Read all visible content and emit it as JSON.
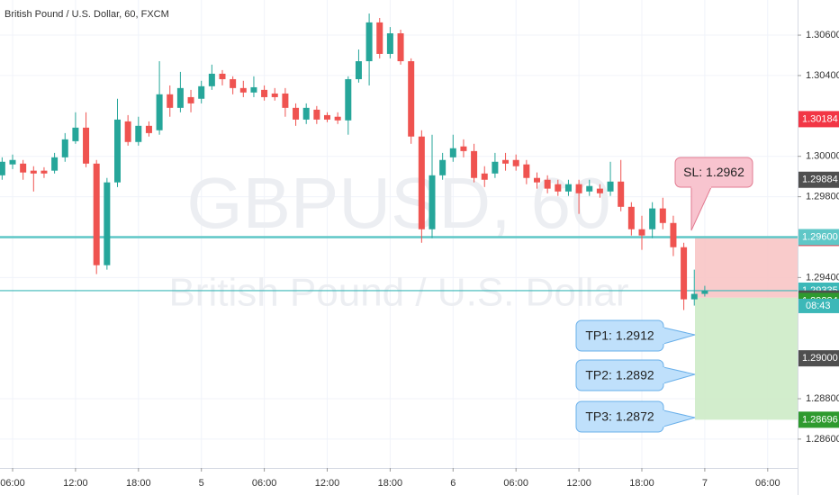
{
  "chart_data": {
    "type": "candlestick",
    "title": "British Pound / U.S. Dollar, 60, FXCM",
    "watermark": [
      "GBPUSD, 60",
      "British Pound / U.S. Dollar"
    ],
    "categories": [
      null,
      "06:00",
      null,
      null,
      null,
      null,
      null,
      "12:00",
      null,
      null,
      null,
      null,
      null,
      "18:00",
      null,
      null,
      null,
      null,
      null,
      "5",
      null,
      null,
      null,
      null,
      null,
      "06:00",
      null,
      null,
      null,
      null,
      null,
      "12:00",
      null,
      null,
      null,
      null,
      null,
      "18:00",
      null,
      null,
      null,
      null,
      null,
      "6",
      null,
      null,
      null,
      null,
      null,
      "06:00",
      null,
      null,
      null,
      null,
      null,
      "12:00",
      null,
      null,
      null,
      null,
      null,
      "18:00",
      null,
      null,
      null,
      null,
      null,
      "7",
      null,
      null,
      null,
      null,
      null,
      "06:00"
    ],
    "open": [
      1.29906,
      1.2996,
      1.29964,
      1.29929,
      1.29929,
      1.29929,
      1.29995,
      1.30075,
      1.30142,
      1.29964,
      1.29461,
      1.29871,
      1.30173,
      1.30071,
      1.30151,
      1.30129,
      1.30307,
      1.3024,
      1.30293,
      1.30285,
      1.30347,
      1.30409,
      1.30382,
      1.30338,
      1.30316,
      1.30329,
      1.30311,
      1.30311,
      1.3024,
      1.30182,
      1.30231,
      1.30204,
      1.30196,
      1.30178,
      1.30382,
      1.30471,
      1.30663,
      1.30507,
      1.30609,
      1.30471,
      1.30098,
      1.29639,
      1.29906,
      1.29995,
      1.30049,
      1.30026,
      1.29915,
      1.29915,
      1.29982,
      1.29982,
      1.2996,
      1.29893,
      1.29884,
      1.29862,
      1.29826,
      1.29862,
      1.29826,
      1.2984,
      1.29826,
      1.29875,
      1.2975,
      1.29639,
      1.29639,
      1.29742,
      1.2967,
      1.2955,
      1.29292,
      1.29319,
      null,
      null,
      null,
      null,
      null,
      null
    ],
    "high": [
      1.29995,
      1.30009,
      1.29982,
      1.29951,
      1.29946,
      1.30017,
      1.30115,
      1.30218,
      1.30218,
      1.29982,
      1.29893,
      1.30285,
      1.30204,
      1.30196,
      1.30173,
      1.30471,
      1.30351,
      1.30418,
      1.30329,
      1.30374,
      1.30454,
      1.30427,
      1.30396,
      1.30374,
      1.30396,
      1.30351,
      1.30338,
      1.30338,
      1.30262,
      1.30262,
      1.30249,
      1.30218,
      1.30218,
      1.30396,
      1.30529,
      1.30707,
      1.30685,
      1.3064,
      1.30627,
      1.30485,
      1.30129,
      1.30107,
      1.30017,
      1.30107,
      1.30084,
      1.30062,
      1.29951,
      1.30017,
      1.30017,
      1.30009,
      1.29982,
      1.2992,
      1.29906,
      1.29884,
      1.29884,
      1.29884,
      1.29884,
      1.29862,
      1.29973,
      1.29982,
      1.29773,
      1.29706,
      1.29773,
      1.29795,
      1.29706,
      1.29572,
      1.29439,
      1.29359,
      null,
      null,
      null,
      null,
      null,
      null
    ],
    "low": [
      1.29884,
      1.29937,
      1.29884,
      1.29826,
      1.29893,
      1.29915,
      1.29973,
      1.30062,
      1.29946,
      1.29417,
      1.29439,
      1.29848,
      1.30053,
      1.30053,
      1.30098,
      1.30107,
      1.30196,
      1.30218,
      1.30218,
      1.30262,
      1.30329,
      1.30351,
      1.30307,
      1.30293,
      1.30293,
      1.30276,
      1.30276,
      1.30196,
      1.30151,
      1.3016,
      1.3016,
      1.30169,
      1.3016,
      1.30107,
      1.30365,
      1.30351,
      1.30485,
      1.30485,
      1.30454,
      1.30062,
      1.29572,
      1.29595,
      1.29884,
      1.29973,
      1.29995,
      1.29871,
      1.29848,
      1.29893,
      1.29929,
      1.29929,
      1.29862,
      1.2984,
      1.29817,
      1.29804,
      1.29804,
      1.29715,
      1.29804,
      1.29795,
      1.29804,
      1.29728,
      1.29608,
      1.29537,
      1.29595,
      1.29639,
      1.29506,
      1.29239,
      1.29261,
      1.29306,
      null,
      null,
      null,
      null,
      null,
      null
    ],
    "close": [
      1.29973,
      1.29982,
      1.2992,
      1.29915,
      1.29915,
      1.29995,
      1.30084,
      1.30142,
      1.29964,
      1.29461,
      1.29871,
      1.30182,
      1.30071,
      1.30151,
      1.30115,
      1.30307,
      1.3024,
      1.30338,
      1.30262,
      1.30347,
      1.30409,
      1.30382,
      1.30338,
      1.30316,
      1.30342,
      1.30293,
      1.30293,
      1.3024,
      1.30182,
      1.3024,
      1.30182,
      1.30182,
      1.30178,
      1.30382,
      1.30471,
      1.30663,
      1.30507,
      1.30609,
      1.30471,
      1.30098,
      1.29639,
      1.29906,
      1.29982,
      1.3004,
      1.30026,
      1.29893,
      1.29884,
      1.29973,
      1.29964,
      1.29951,
      1.29893,
      1.29871,
      1.2984,
      1.29826,
      1.29862,
      1.29817,
      1.29853,
      1.29817,
      1.29875,
      1.2975,
      1.29639,
      1.29608,
      1.29742,
      1.2967,
      1.2955,
      1.29292,
      1.29319,
      1.29335,
      null,
      null,
      null,
      null,
      null,
      null
    ],
    "up_color": "#26a69a",
    "down_color": "#ef5350",
    "ylim": [
      1.28457,
      1.30774
    ],
    "yticks": [
      {
        "value": 1.306,
        "label": "1.30600"
      },
      {
        "value": 1.304,
        "label": "1.30400"
      },
      {
        "value": 1.3,
        "label": "1.30000"
      },
      {
        "value": 1.298,
        "label": "1.29800"
      },
      {
        "value": 1.294,
        "label": "1.29400"
      },
      {
        "value": 1.288,
        "label": "1.28800"
      },
      {
        "value": 1.286,
        "label": "1.28600"
      }
    ],
    "grid": true,
    "price_labels": [
      {
        "value": 1.30184,
        "color": "#f23645"
      },
      {
        "value": 1.29884,
        "color": "#4f4f4f"
      },
      {
        "value": 1.296,
        "label": "1.29600",
        "color": "#5fc7c7",
        "line": true
      },
      {
        "value": 1.29335,
        "color": "#3cb8b8",
        "line": true
      },
      {
        "value": 1.29296,
        "color": "#4f4f4f"
      },
      {
        "value": 1.29284,
        "color": "#2e9a2e"
      },
      {
        "value": 1.29,
        "label": "1.29000",
        "color": "#4f4f4f"
      }
    ],
    "countdown": "08:43",
    "position": {
      "stop": {
        "value": 1.29596,
        "color": "#f23645"
      },
      "entry": {
        "value": 1.293,
        "label": "1.29300",
        "color": "#f23645"
      },
      "target": {
        "value": 1.28696,
        "color": "#2e9a2e"
      }
    },
    "annotations": [
      {
        "text": "SL: 1.2962",
        "color": "#f8c4cf",
        "border": "#e27a90"
      },
      {
        "text": "TP1: 1.2912",
        "color": "#bfe0fb",
        "border": "#6ab0ea"
      },
      {
        "text": "TP2: 1.2892",
        "color": "#bfe0fb",
        "border": "#6ab0ea"
      },
      {
        "text": "TP3: 1.2872",
        "color": "#bfe0fb",
        "border": "#6ab0ea"
      }
    ]
  }
}
